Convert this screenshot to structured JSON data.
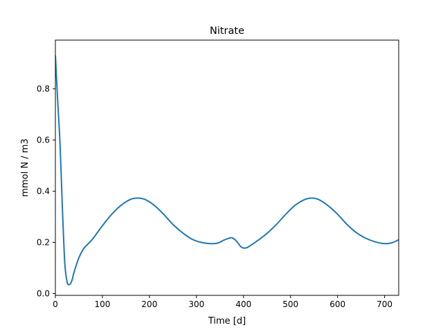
{
  "chart_data": {
    "type": "line",
    "title": "Nitrate",
    "xlabel": "Time [d]",
    "ylabel": "mmol N / m3",
    "xlim": [
      0,
      730
    ],
    "ylim": [
      -0.007,
      0.99
    ],
    "xticks": [
      0,
      100,
      200,
      300,
      400,
      500,
      600,
      700
    ],
    "xtick_labels": [
      "0",
      "100",
      "200",
      "300",
      "400",
      "500",
      "600",
      "700"
    ],
    "yticks": [
      0.0,
      0.2,
      0.4,
      0.6,
      0.8
    ],
    "ytick_labels": [
      "0.0",
      "0.2",
      "0.4",
      "0.6",
      "0.8"
    ],
    "grid": false,
    "legend": "none",
    "series": [
      {
        "color": "#1f77b4",
        "x": [
          0,
          5,
          10,
          15,
          20,
          25,
          30,
          35,
          40,
          50,
          60,
          70,
          80,
          100,
          120,
          140,
          160,
          175,
          190,
          210,
          230,
          250,
          270,
          290,
          310,
          330,
          345,
          360,
          375,
          385,
          395,
          405,
          415,
          430,
          450,
          470,
          490,
          510,
          530,
          545,
          560,
          580,
          600,
          620,
          640,
          660,
          680,
          700,
          715,
          730
        ],
        "y": [
          0.93,
          0.75,
          0.58,
          0.33,
          0.12,
          0.045,
          0.035,
          0.05,
          0.085,
          0.14,
          0.175,
          0.195,
          0.215,
          0.265,
          0.31,
          0.345,
          0.368,
          0.373,
          0.368,
          0.345,
          0.31,
          0.27,
          0.238,
          0.213,
          0.2,
          0.195,
          0.197,
          0.21,
          0.218,
          0.205,
          0.182,
          0.178,
          0.188,
          0.207,
          0.235,
          0.27,
          0.31,
          0.345,
          0.367,
          0.373,
          0.367,
          0.343,
          0.31,
          0.27,
          0.238,
          0.216,
          0.202,
          0.195,
          0.198,
          0.21
        ]
      }
    ]
  }
}
